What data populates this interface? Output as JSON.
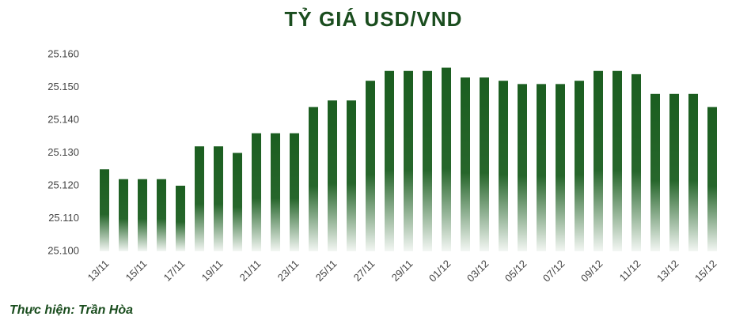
{
  "chart_data": {
    "type": "bar",
    "title": "TỶ GIÁ USD/VND",
    "categories": [
      "13/11",
      null,
      "15/11",
      null,
      "17/11",
      null,
      "19/11",
      null,
      "21/11",
      null,
      "23/11",
      null,
      "25/11",
      null,
      "27/11",
      null,
      "29/11",
      null,
      "01/12",
      null,
      "03/12",
      null,
      "05/12",
      null,
      "07/12",
      null,
      "09/12",
      null,
      "11/12",
      null,
      "13/12",
      null,
      "15/12"
    ],
    "values": [
      25.125,
      25.122,
      25.122,
      25.122,
      25.12,
      25.132,
      25.132,
      25.13,
      25.136,
      25.136,
      25.136,
      25.144,
      25.146,
      25.146,
      25.152,
      25.155,
      25.155,
      25.155,
      25.156,
      25.153,
      25.153,
      25.152,
      25.151,
      25.151,
      25.151,
      25.152,
      25.155,
      25.155,
      25.154,
      25.148,
      25.148,
      25.148,
      25.144
    ],
    "color": "#1b5e20",
    "ylim": [
      25.1,
      25.16
    ],
    "yticks": [
      {
        "value": 25.1,
        "label": "25.100"
      },
      {
        "value": 25.11,
        "label": "25.110"
      },
      {
        "value": 25.12,
        "label": "25.120"
      },
      {
        "value": 25.13,
        "label": "25.130"
      },
      {
        "value": 25.14,
        "label": "25.140"
      },
      {
        "value": 25.15,
        "label": "25.150"
      },
      {
        "value": 25.16,
        "label": "25.160"
      }
    ],
    "grid": false,
    "credit": "Thực hiện: Trần Hòa"
  }
}
